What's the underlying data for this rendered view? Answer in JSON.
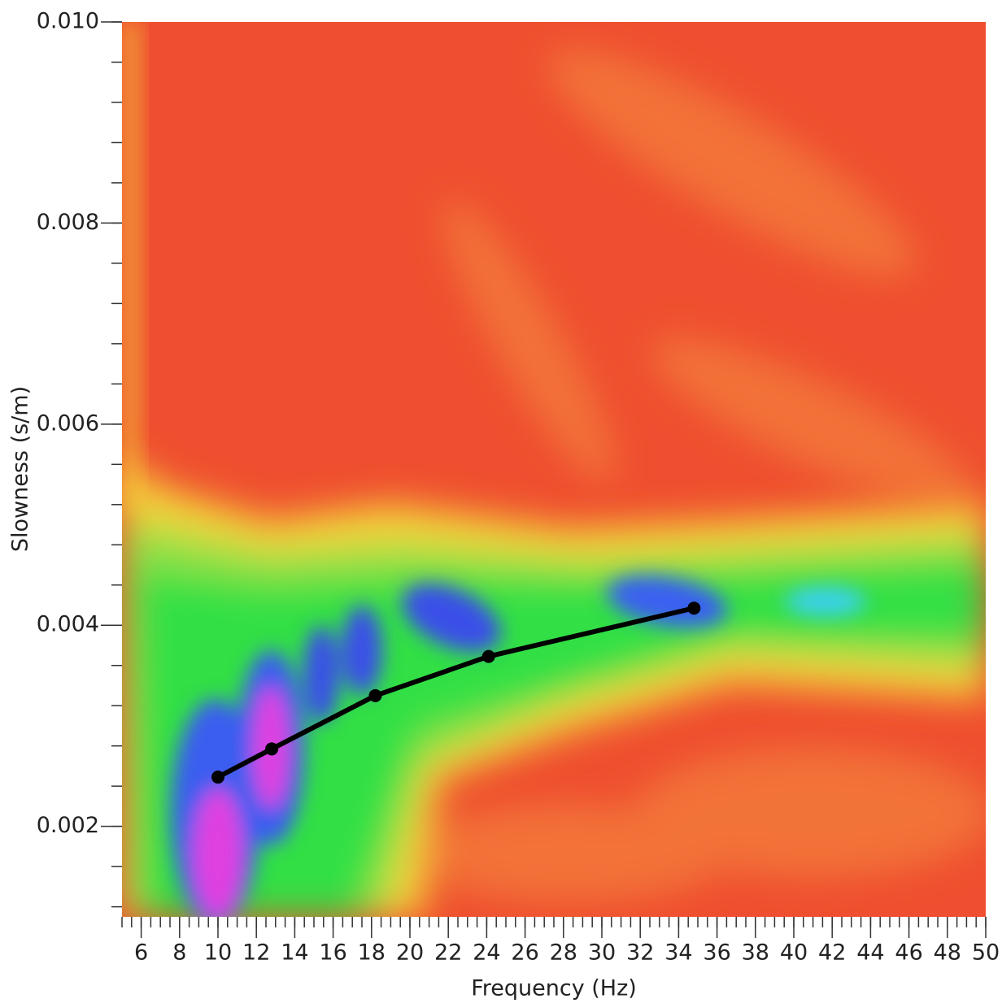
{
  "chart_data": {
    "type": "line",
    "x_label": "Frequency (Hz)",
    "y_label": "Slowness (s/m)",
    "xlim": [
      5,
      50
    ],
    "xticks": [
      6,
      8,
      10,
      12,
      14,
      16,
      18,
      20,
      22,
      24,
      26,
      28,
      30,
      32,
      34,
      36,
      38,
      40,
      42,
      44,
      46,
      48,
      50
    ],
    "ylim": [
      0.0011,
      0.01
    ],
    "yticks": [
      0.002,
      0.004,
      0.006,
      0.008,
      {
        "value": 0.01,
        "label": "0.010"
      }
    ],
    "x": [
      10.0,
      12.8,
      18.2,
      24.1,
      34.8
    ],
    "series": [
      {
        "color": "#000000",
        "values": [
          0.00249,
          0.00277,
          0.0033,
          0.00369,
          0.00417
        ]
      }
    ]
  }
}
